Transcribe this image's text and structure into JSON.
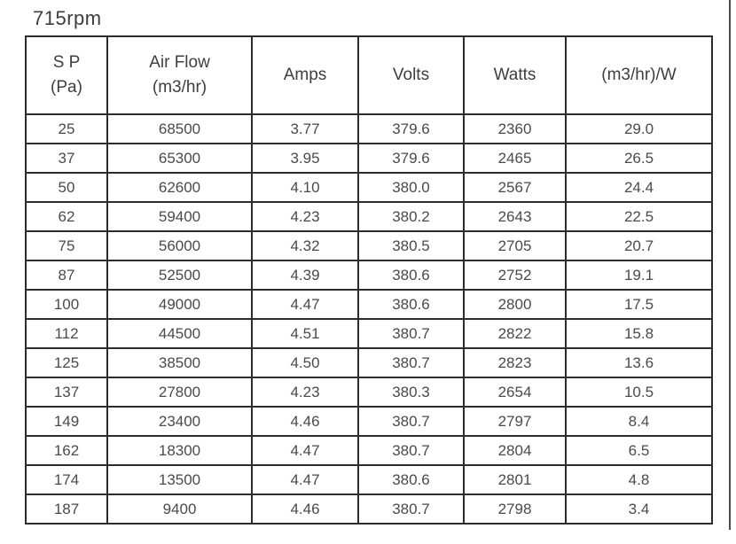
{
  "page": {
    "title": "715rpm"
  },
  "table": {
    "columns": [
      {
        "line1": "S P",
        "line2": "(Pa)"
      },
      {
        "line1": "Air Flow",
        "line2": "(m3/hr)"
      },
      {
        "line1": "Amps",
        "line2": ""
      },
      {
        "line1": "Volts",
        "line2": ""
      },
      {
        "line1": "Watts",
        "line2": ""
      },
      {
        "line1": "(m3/hr)/W",
        "line2": ""
      }
    ],
    "rows": [
      [
        "25",
        "68500",
        "3.77",
        "379.6",
        "2360",
        "29.0"
      ],
      [
        "37",
        "65300",
        "3.95",
        "379.6",
        "2465",
        "26.5"
      ],
      [
        "50",
        "62600",
        "4.10",
        "380.0",
        "2567",
        "24.4"
      ],
      [
        "62",
        "59400",
        "4.23",
        "380.2",
        "2643",
        "22.5"
      ],
      [
        "75",
        "56000",
        "4.32",
        "380.5",
        "2705",
        "20.7"
      ],
      [
        "87",
        "52500",
        "4.39",
        "380.6",
        "2752",
        "19.1"
      ],
      [
        "100",
        "49000",
        "4.47",
        "380.6",
        "2800",
        "17.5"
      ],
      [
        "112",
        "44500",
        "4.51",
        "380.7",
        "2822",
        "15.8"
      ],
      [
        "125",
        "38500",
        "4.50",
        "380.7",
        "2823",
        "13.6"
      ],
      [
        "137",
        "27800",
        "4.23",
        "380.3",
        "2654",
        "10.5"
      ],
      [
        "149",
        "23400",
        "4.46",
        "380.7",
        "2797",
        "8.4"
      ],
      [
        "162",
        "18300",
        "4.47",
        "380.7",
        "2804",
        "6.5"
      ],
      [
        "174",
        "13500",
        "4.47",
        "380.6",
        "2801",
        "4.8"
      ],
      [
        "187",
        "9400",
        "4.46",
        "380.7",
        "2798",
        "3.4"
      ]
    ],
    "colors": {
      "border": "#2d2d2d",
      "text": "#4a4a4a",
      "background": "#ffffff"
    }
  }
}
